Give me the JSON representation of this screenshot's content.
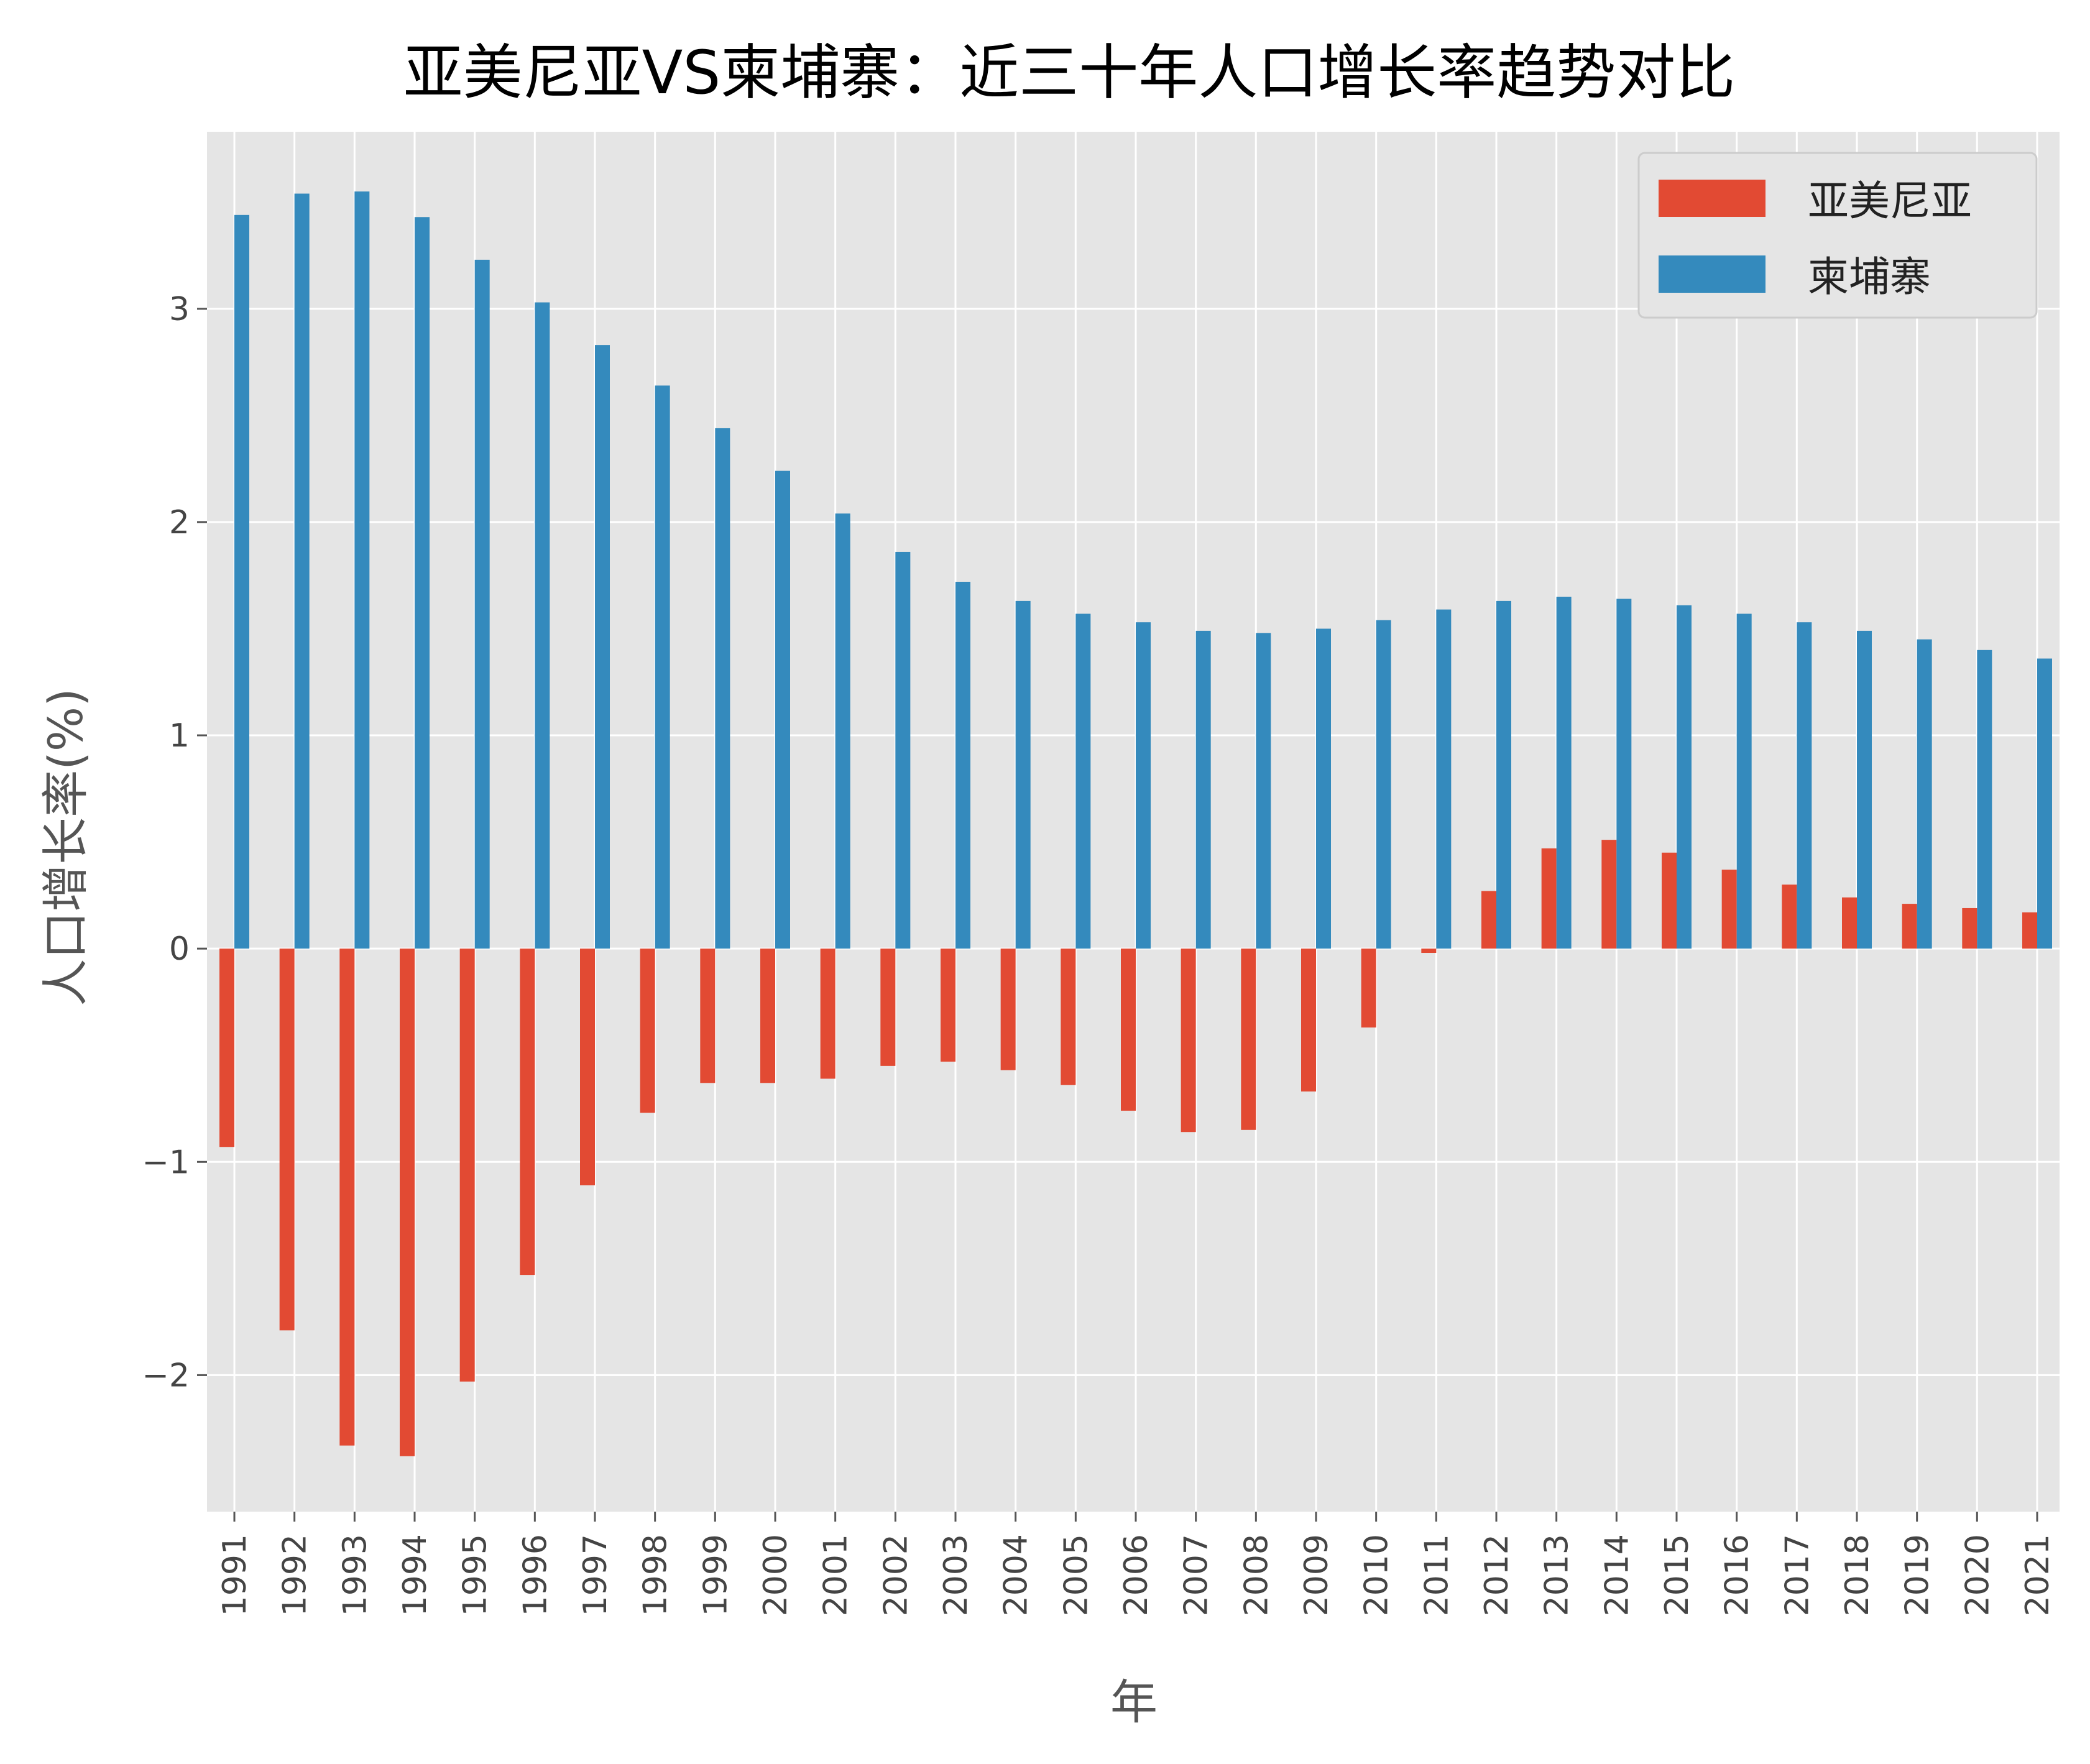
{
  "chart_data": {
    "type": "bar",
    "title": "亚美尼亚VS柬埔寨：近三十年人口增长率趋势对比",
    "xlabel": "年",
    "ylabel": "人口增长率(%)",
    "categories": [
      "1991",
      "1992",
      "1993",
      "1994",
      "1995",
      "1996",
      "1997",
      "1998",
      "1999",
      "2000",
      "2001",
      "2002",
      "2003",
      "2004",
      "2005",
      "2006",
      "2007",
      "2008",
      "2009",
      "2010",
      "2011",
      "2012",
      "2013",
      "2014",
      "2015",
      "2016",
      "2017",
      "2018",
      "2019",
      "2020",
      "2021"
    ],
    "series": [
      {
        "name": "亚美尼亚",
        "color": "#E24A33",
        "values": [
          -0.93,
          -1.79,
          -2.33,
          -2.38,
          -2.03,
          -1.53,
          -1.11,
          -0.77,
          -0.63,
          -0.63,
          -0.61,
          -0.55,
          -0.53,
          -0.57,
          -0.64,
          -0.76,
          -0.86,
          -0.85,
          -0.67,
          -0.37,
          -0.02,
          0.27,
          0.47,
          0.51,
          0.45,
          0.37,
          0.3,
          0.24,
          0.21,
          0.19,
          0.17
        ]
      },
      {
        "name": "柬埔寨",
        "color": "#348ABD",
        "values": [
          3.44,
          3.54,
          3.55,
          3.43,
          3.23,
          3.03,
          2.83,
          2.64,
          2.44,
          2.24,
          2.04,
          1.86,
          1.72,
          1.63,
          1.57,
          1.53,
          1.49,
          1.48,
          1.5,
          1.54,
          1.59,
          1.63,
          1.65,
          1.64,
          1.61,
          1.57,
          1.53,
          1.49,
          1.45,
          1.4,
          1.36
        ]
      }
    ],
    "yticks": [
      -2,
      -1,
      0,
      1,
      2,
      3
    ],
    "ytick_labels": [
      "−2",
      "−1",
      "0",
      "1",
      "2",
      "3"
    ],
    "ylim": [
      -2.64,
      3.83
    ],
    "grid": true,
    "legend": "top-right",
    "colors": {
      "plot_background": "#E5E5E5",
      "grid": "#FFFFFF"
    }
  }
}
